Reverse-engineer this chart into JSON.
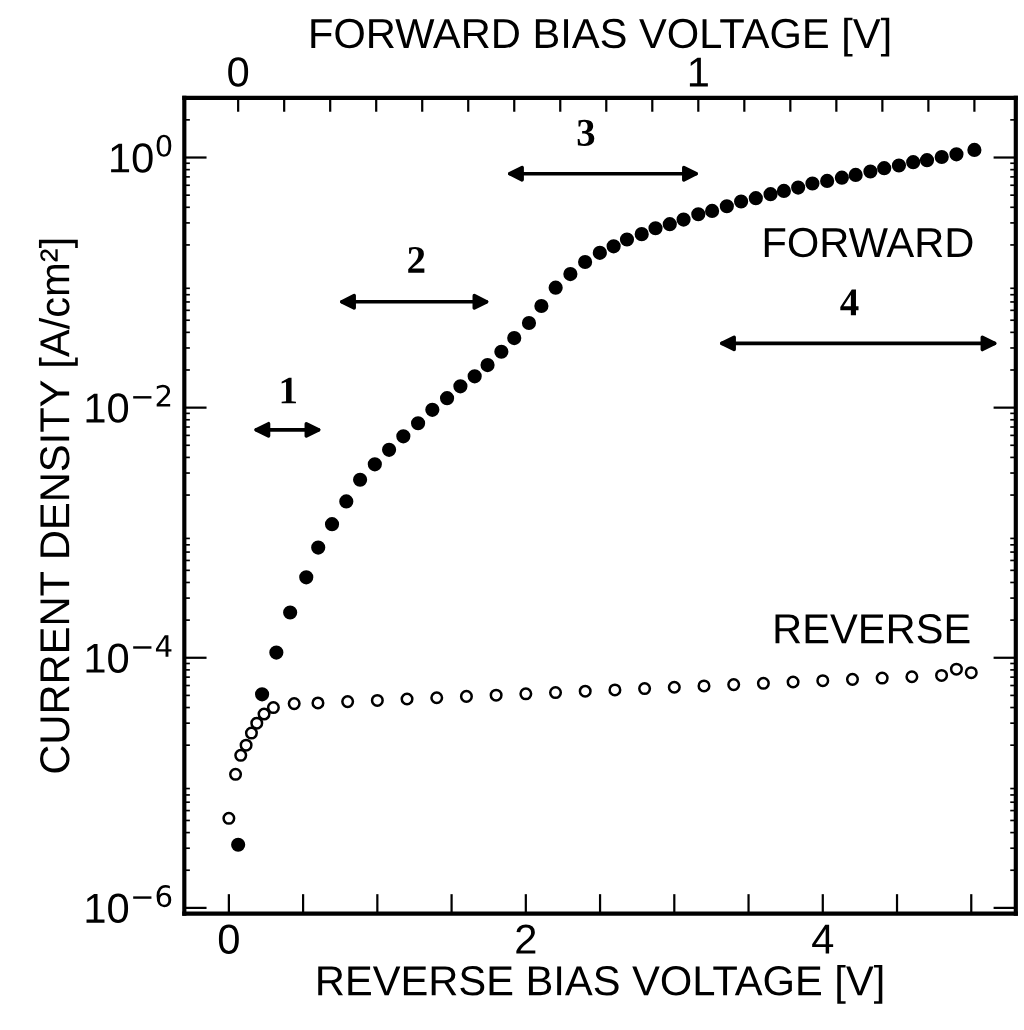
{
  "chart_data": {
    "type": "scatter",
    "xlabel": "REVERSE BIAS VOLTAGE [V]",
    "x2label": "FORWARD BIAS VOLTAGE [V]",
    "ylabel": "CURRENT DENSITY [A/cm²]",
    "log": "y",
    "xlim": [
      -0.3,
      5.3
    ],
    "xticks": [
      0,
      {
        "value": 0.5,
        "label": null
      },
      {
        "value": 1,
        "label": null
      },
      {
        "value": 1.5,
        "label": null
      },
      2,
      {
        "value": 2.5,
        "label": null
      },
      {
        "value": 3,
        "label": null
      },
      {
        "value": 3.5,
        "label": null
      },
      4,
      {
        "value": 4.5,
        "label": null
      },
      {
        "value": 5,
        "label": null
      }
    ],
    "x2lim": [
      -0.117,
      1.69
    ],
    "x2ticks": [
      0,
      {
        "value": 0.1,
        "label": null
      },
      {
        "value": 0.2,
        "label": null
      },
      {
        "value": 0.3,
        "label": null
      },
      {
        "value": 0.4,
        "label": null
      },
      {
        "value": 0.5,
        "label": null
      },
      {
        "value": 0.6,
        "label": null
      },
      {
        "value": 0.7,
        "label": null
      },
      {
        "value": 0.8,
        "label": null
      },
      {
        "value": 0.9,
        "label": null
      },
      1,
      {
        "value": 1.1,
        "label": null
      },
      {
        "value": 1.2,
        "label": null
      },
      {
        "value": 1.3,
        "label": null
      },
      {
        "value": 1.4,
        "label": null
      },
      {
        "value": 1.5,
        "label": null
      },
      {
        "value": 1.6,
        "label": null
      }
    ],
    "ylim": [
      9e-07,
      3
    ],
    "yticks": [
      {
        "value": 1e-06,
        "label": "10$^{−6}$"
      },
      {
        "value": 0.0001,
        "label": "10$^{−4}$"
      },
      {
        "value": 0.01,
        "label": "10$^{−2}$"
      },
      {
        "value": 1,
        "label": "10$^{0}$"
      }
    ],
    "grid": false,
    "legend": "right",
    "series": [
      {
        "name": "FORWARD",
        "axis": "x2",
        "color": "#000000",
        "marker": "circle",
        "x": [
          0.0,
          0.052,
          0.083,
          0.113,
          0.148,
          0.174,
          0.204,
          0.235,
          0.265,
          0.297,
          0.328,
          0.359,
          0.391,
          0.422,
          0.454,
          0.483,
          0.514,
          0.542,
          0.572,
          0.6,
          0.632,
          0.659,
          0.69,
          0.722,
          0.754,
          0.786,
          0.816,
          0.845,
          0.877,
          0.907,
          0.938,
          0.968,
          1.0,
          1.03,
          1.062,
          1.093,
          1.125,
          1.157,
          1.186,
          1.217,
          1.248,
          1.28,
          1.312,
          1.342,
          1.374,
          1.404,
          1.436,
          1.467,
          1.497,
          1.529,
          1.561,
          1.6
        ],
        "values": [
          3.2e-06,
          5.1e-05,
          0.00011,
          0.00023,
          0.00044,
          0.00076,
          0.00117,
          0.00178,
          0.00265,
          0.00352,
          0.0046,
          0.0059,
          0.0075,
          0.0096,
          0.0119,
          0.0148,
          0.0178,
          0.0219,
          0.028,
          0.036,
          0.0475,
          0.065,
          0.091,
          0.117,
          0.146,
          0.173,
          0.195,
          0.221,
          0.244,
          0.272,
          0.293,
          0.319,
          0.352,
          0.374,
          0.408,
          0.445,
          0.473,
          0.509,
          0.541,
          0.575,
          0.62,
          0.65,
          0.69,
          0.726,
          0.773,
          0.822,
          0.863,
          0.918,
          0.953,
          1.01,
          1.06,
          1.15
        ]
      },
      {
        "name": "REVERSE",
        "color": "#000000",
        "marker": "circle_open",
        "x": [
          0,
          0.045,
          0.08,
          0.116,
          0.152,
          0.188,
          0.237,
          0.3,
          0.44,
          0.6,
          0.8,
          1.0,
          1.2,
          1.4,
          1.6,
          1.8,
          2.0,
          2.2,
          2.4,
          2.6,
          2.8,
          3.0,
          3.2,
          3.4,
          3.6,
          3.8,
          4.0,
          4.2,
          4.4,
          4.6,
          4.8,
          4.9,
          5.0
        ],
        "values": [
          5.2e-06,
          1.17e-05,
          1.66e-05,
          2e-05,
          2.5e-05,
          3e-05,
          3.55e-05,
          4e-05,
          4.3e-05,
          4.35e-05,
          4.46e-05,
          4.56e-05,
          4.68e-05,
          4.79e-05,
          4.91e-05,
          5.02e-05,
          5.15e-05,
          5.27e-05,
          5.4e-05,
          5.53e-05,
          5.67e-05,
          5.81e-05,
          5.95e-05,
          6.1e-05,
          6.25e-05,
          6.4e-05,
          6.56e-05,
          6.72e-05,
          6.88e-05,
          7.05e-05,
          7.22e-05,
          8.1e-05,
          7.6e-05
        ]
      }
    ],
    "annotations": [
      "1",
      "2",
      "3",
      "4"
    ]
  }
}
